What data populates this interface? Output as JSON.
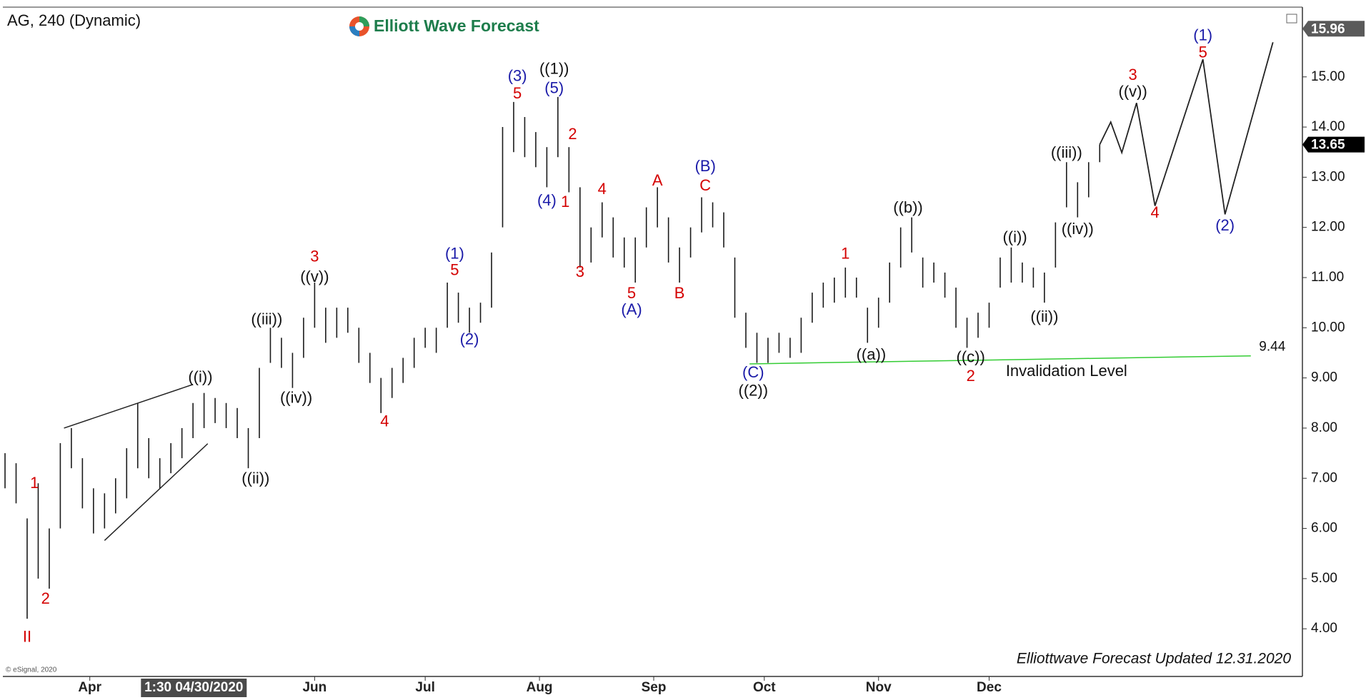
{
  "chart_data": {
    "type": "price-bars",
    "title": "AG, 240 (Dynamic)",
    "brand": "Elliott Wave Forecast",
    "footer": "Elliottwave Forecast Updated 12.31.2020",
    "copyright": "© eSignal, 2020",
    "crosshair": {
      "x": 121,
      "label": "1:30 04/30/2020"
    },
    "xlim": [
      68.8,
      421
    ],
    "ylim": [
      3.05,
      16.39
    ],
    "xticks": [
      {
        "value": 92,
        "label": "Apr"
      },
      {
        "value": 153,
        "label": "Jun"
      },
      {
        "value": 183,
        "label": "Jul"
      },
      {
        "value": 214,
        "label": "Aug"
      },
      {
        "value": 245,
        "label": "Sep"
      },
      {
        "value": 275,
        "label": "Oct"
      },
      {
        "value": 306,
        "label": "Nov"
      },
      {
        "value": 336,
        "label": "Dec"
      }
    ],
    "yticks": [
      {
        "value": 4,
        "label": "4.00"
      },
      {
        "value": 5,
        "label": "5.00"
      },
      {
        "value": 6,
        "label": "6.00"
      },
      {
        "value": 7,
        "label": "7.00"
      },
      {
        "value": 8,
        "label": "8.00"
      },
      {
        "value": 9,
        "label": "9.00"
      },
      {
        "value": 10,
        "label": "10.00"
      },
      {
        "value": 11,
        "label": "11.00"
      },
      {
        "value": 12,
        "label": "12.00"
      },
      {
        "value": 13,
        "label": "13.00"
      },
      {
        "value": 14,
        "label": "14.00"
      },
      {
        "value": 15,
        "label": "15.00"
      }
    ],
    "price_tags": [
      {
        "value": 15.96,
        "color": "#5a5a5a"
      },
      {
        "value": 13.65,
        "color": "#000000"
      }
    ],
    "color": "#1a1a1a",
    "x": [
      69,
      72,
      75,
      78,
      81,
      84,
      87,
      90,
      93,
      96,
      99,
      102,
      105,
      108,
      111,
      114,
      117,
      120,
      123,
      126,
      129,
      132,
      135,
      138,
      141,
      144,
      147,
      150,
      153,
      156,
      159,
      162,
      165,
      168,
      171,
      174,
      177,
      180,
      183,
      186,
      189,
      192,
      195,
      198,
      201,
      204,
      207,
      210,
      213,
      216,
      219,
      222,
      225,
      228,
      231,
      234,
      237,
      240,
      243,
      246,
      249,
      252,
      255,
      258,
      261,
      264,
      267,
      270,
      273,
      276,
      279,
      282,
      285,
      288,
      291,
      294,
      297,
      300,
      303,
      306,
      309,
      312,
      315,
      318,
      321,
      324,
      327,
      330,
      333,
      336,
      339,
      342,
      345,
      348,
      351,
      354,
      357,
      360,
      363,
      366
    ],
    "low": [
      6.8,
      6.5,
      4.2,
      5.0,
      4.8,
      6.0,
      7.2,
      6.4,
      5.9,
      6.0,
      6.3,
      6.6,
      7.2,
      7.0,
      6.8,
      7.1,
      7.4,
      7.8,
      8.0,
      8.1,
      8.0,
      7.8,
      7.2,
      7.8,
      9.3,
      9.2,
      8.8,
      9.4,
      10.0,
      9.7,
      9.8,
      9.9,
      9.3,
      8.9,
      8.3,
      8.6,
      8.9,
      9.2,
      9.6,
      9.5,
      10.0,
      10.1,
      9.9,
      10.1,
      10.4,
      12.0,
      13.5,
      13.4,
      13.2,
      12.8,
      13.4,
      12.7,
      11.2,
      11.3,
      11.8,
      11.4,
      11.2,
      10.9,
      11.6,
      12.0,
      11.3,
      10.9,
      11.4,
      11.9,
      12.0,
      11.6,
      10.2,
      9.6,
      9.3,
      9.3,
      9.5,
      9.4,
      9.5,
      10.1,
      10.4,
      10.5,
      10.6,
      10.6,
      9.7,
      10.0,
      10.5,
      11.2,
      11.5,
      10.8,
      10.9,
      10.6,
      10.0,
      9.6,
      9.8,
      10.0,
      10.8,
      10.9,
      10.9,
      10.8,
      10.5,
      11.2,
      12.4,
      12.2,
      12.6,
      13.3
    ],
    "high": [
      7.5,
      7.3,
      6.2,
      6.9,
      6.0,
      7.7,
      8.0,
      7.4,
      6.8,
      6.7,
      7.0,
      7.6,
      8.5,
      7.8,
      7.4,
      7.7,
      8.0,
      8.5,
      8.7,
      8.6,
      8.5,
      8.4,
      8.0,
      9.2,
      10.0,
      9.8,
      9.5,
      10.2,
      10.9,
      10.4,
      10.4,
      10.4,
      10.0,
      9.5,
      9.0,
      9.2,
      9.4,
      9.8,
      10.0,
      10.0,
      10.9,
      10.7,
      10.4,
      10.5,
      11.5,
      14.0,
      14.5,
      14.2,
      13.9,
      13.6,
      14.6,
      13.6,
      12.8,
      12.0,
      12.5,
      12.2,
      11.8,
      11.8,
      12.4,
      12.8,
      12.2,
      11.6,
      12.0,
      12.6,
      12.5,
      12.3,
      11.4,
      10.3,
      9.9,
      9.8,
      9.9,
      9.8,
      10.2,
      10.7,
      10.9,
      11.0,
      11.2,
      11.0,
      10.4,
      10.6,
      11.3,
      12.0,
      12.2,
      11.4,
      11.3,
      11.1,
      10.8,
      10.2,
      10.3,
      10.5,
      11.4,
      11.6,
      11.3,
      11.2,
      11.1,
      12.1,
      13.3,
      12.9,
      13.3,
      13.65
    ],
    "trendlines": [
      {
        "x": [
          85,
          120
        ],
        "y": [
          8.0,
          8.87
        ],
        "color": "#222222"
      },
      {
        "x": [
          96,
          124
        ],
        "y": [
          5.76,
          7.69
        ],
        "color": "#222222"
      }
    ],
    "forecast": {
      "x": [
        366,
        369,
        372,
        376,
        381,
        394,
        400,
        413
      ],
      "y": [
        13.65,
        14.1,
        13.49,
        14.48,
        12.43,
        15.35,
        12.26,
        15.69
      ],
      "color": "#222222"
    },
    "invalidation": {
      "x": [
        271,
        407
      ],
      "y": [
        9.28,
        9.44
      ],
      "color": "#33cc33"
    },
    "annotations": [
      {
        "text": "II",
        "x": 75,
        "y": 3.82,
        "color": "#d40000"
      },
      {
        "text": "1",
        "x": 77,
        "y": 6.89,
        "color": "#d40000"
      },
      {
        "text": "2",
        "x": 80,
        "y": 4.58,
        "color": "#d40000"
      },
      {
        "text": "((i))",
        "x": 122,
        "y": 9.0,
        "color": "#111111"
      },
      {
        "text": "((ii))",
        "x": 137,
        "y": 6.98,
        "color": "#111111"
      },
      {
        "text": "((iii))",
        "x": 140,
        "y": 10.15,
        "color": "#111111"
      },
      {
        "text": "((iv))",
        "x": 148,
        "y": 8.59,
        "color": "#111111"
      },
      {
        "text": "((v))",
        "x": 153,
        "y": 11.0,
        "color": "#111111"
      },
      {
        "text": "3",
        "x": 153,
        "y": 11.4,
        "color": "#d40000"
      },
      {
        "text": "4",
        "x": 172,
        "y": 8.12,
        "color": "#d40000"
      },
      {
        "text": "(1)",
        "x": 191,
        "y": 11.46,
        "color": "#1a1aa8"
      },
      {
        "text": "5",
        "x": 191,
        "y": 11.13,
        "color": "#d40000"
      },
      {
        "text": "(2)",
        "x": 195,
        "y": 9.75,
        "color": "#1a1aa8"
      },
      {
        "text": "(3)",
        "x": 208,
        "y": 15.0,
        "color": "#1a1aa8"
      },
      {
        "text": "5",
        "x": 208,
        "y": 14.65,
        "color": "#d40000"
      },
      {
        "text": "((1))",
        "x": 218,
        "y": 15.14,
        "color": "#111111"
      },
      {
        "text": "(5)",
        "x": 218,
        "y": 14.76,
        "color": "#1a1aa8"
      },
      {
        "text": "2",
        "x": 223,
        "y": 13.84,
        "color": "#d40000"
      },
      {
        "text": "(4)",
        "x": 216,
        "y": 12.52,
        "color": "#1a1aa8"
      },
      {
        "text": "1",
        "x": 221,
        "y": 12.49,
        "color": "#d40000"
      },
      {
        "text": "3",
        "x": 225,
        "y": 11.1,
        "color": "#d40000"
      },
      {
        "text": "4",
        "x": 231,
        "y": 12.75,
        "color": "#d40000"
      },
      {
        "text": "5",
        "x": 239,
        "y": 10.67,
        "color": "#d40000"
      },
      {
        "text": "(A)",
        "x": 239,
        "y": 10.34,
        "color": "#1a1aa8"
      },
      {
        "text": "A",
        "x": 246,
        "y": 12.92,
        "color": "#d40000"
      },
      {
        "text": "B",
        "x": 252,
        "y": 10.67,
        "color": "#d40000"
      },
      {
        "text": "(B)",
        "x": 259,
        "y": 13.2,
        "color": "#1a1aa8"
      },
      {
        "text": "C",
        "x": 259,
        "y": 12.82,
        "color": "#d40000"
      },
      {
        "text": "(C)",
        "x": 272,
        "y": 9.09,
        "color": "#1a1aa8"
      },
      {
        "text": "((2))",
        "x": 272,
        "y": 8.73,
        "color": "#111111"
      },
      {
        "text": "1",
        "x": 297,
        "y": 11.46,
        "color": "#d40000"
      },
      {
        "text": "((a))",
        "x": 304,
        "y": 9.45,
        "color": "#111111"
      },
      {
        "text": "((b))",
        "x": 314,
        "y": 12.38,
        "color": "#111111"
      },
      {
        "text": "((c))",
        "x": 331,
        "y": 9.4,
        "color": "#111111"
      },
      {
        "text": "2",
        "x": 331,
        "y": 9.02,
        "color": "#d40000"
      },
      {
        "text": "((i))",
        "x": 343,
        "y": 11.79,
        "color": "#111111"
      },
      {
        "text": "((ii))",
        "x": 351,
        "y": 10.2,
        "color": "#111111"
      },
      {
        "text": "((iii))",
        "x": 357,
        "y": 13.47,
        "color": "#111111"
      },
      {
        "text": "((iv))",
        "x": 360,
        "y": 11.95,
        "color": "#111111"
      },
      {
        "text": "((v))",
        "x": 375,
        "y": 14.69,
        "color": "#111111"
      },
      {
        "text": "3",
        "x": 375,
        "y": 15.02,
        "color": "#d40000"
      },
      {
        "text": "4",
        "x": 381,
        "y": 12.28,
        "color": "#d40000"
      },
      {
        "text": "(1)",
        "x": 394,
        "y": 15.81,
        "color": "#1a1aa8"
      },
      {
        "text": "5",
        "x": 394,
        "y": 15.47,
        "color": "#d40000"
      },
      {
        "text": "(2)",
        "x": 400,
        "y": 12.02,
        "color": "#1a1aa8"
      },
      {
        "text": "Invalidation Level",
        "x": 357,
        "y": 9.12,
        "color": "#111111"
      }
    ]
  }
}
